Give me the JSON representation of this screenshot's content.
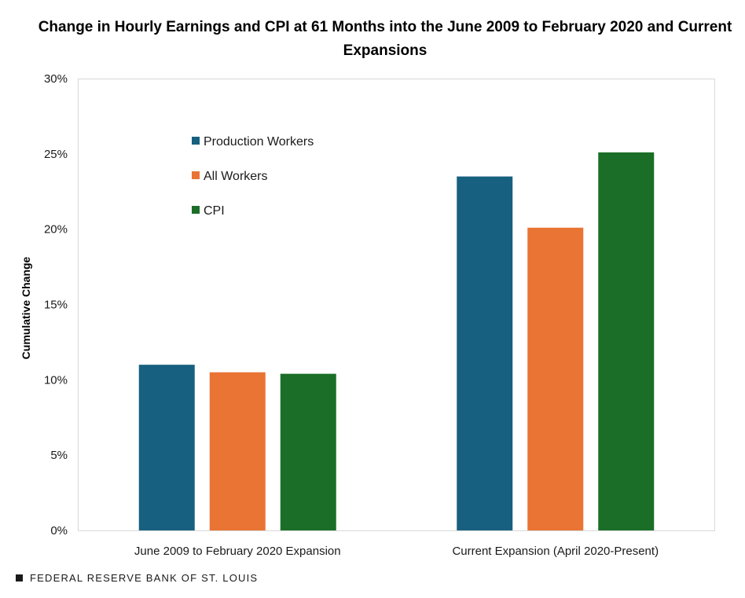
{
  "source_label": "FEDERAL RESERVE BANK OF ST. LOUIS",
  "colors": {
    "production_workers": "#17607f",
    "all_workers": "#e97434",
    "cpi": "#1b6e27",
    "plot_border": "#d9d9d9"
  },
  "chart_data": {
    "type": "bar",
    "title": "Change in Hourly Earnings and CPI at 61 Months into the June 2009 to February 2020 and Current Expansions",
    "xlabel": "",
    "ylabel": "Cumulative Change",
    "ylim": [
      0,
      30
    ],
    "yticks": [
      0,
      5,
      10,
      15,
      20,
      25,
      30
    ],
    "ytick_labels": [
      "0%",
      "5%",
      "10%",
      "15%",
      "20%",
      "25%",
      "30%"
    ],
    "categories": [
      "June 2009 to February 2020 Expansion",
      "Current Expansion (April 2020-Present)"
    ],
    "series": [
      {
        "name": "Production Workers",
        "values": [
          11.0,
          23.5
        ],
        "color": "#17607f"
      },
      {
        "name": "All Workers",
        "values": [
          10.5,
          20.1
        ],
        "color": "#e97434"
      },
      {
        "name": "CPI",
        "values": [
          10.4,
          25.1
        ],
        "color": "#1b6e27"
      }
    ],
    "legend_position": "inside-top-left",
    "grid": false
  }
}
